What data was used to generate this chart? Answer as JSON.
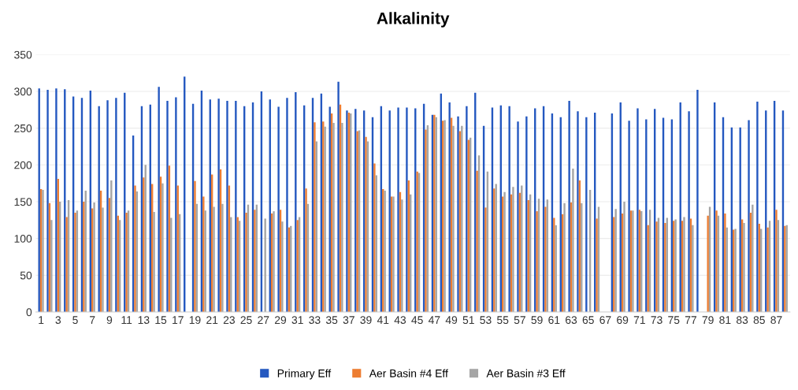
{
  "chart_data": {
    "type": "bar",
    "title": "Alkalinity",
    "categories": [
      "1",
      null,
      "3",
      null,
      "5",
      null,
      "7",
      null,
      "9",
      null,
      "11",
      null,
      "13",
      null,
      "15",
      null,
      "17",
      null,
      "19",
      null,
      "21",
      null,
      "23",
      null,
      "25",
      null,
      "27",
      null,
      "29",
      null,
      "31",
      null,
      "33",
      null,
      "35",
      null,
      "37",
      null,
      "39",
      null,
      "41",
      null,
      "43",
      null,
      "45",
      null,
      "47",
      null,
      "49",
      null,
      "51",
      null,
      "53",
      null,
      "55",
      null,
      "57",
      null,
      "59",
      null,
      "61",
      null,
      "63",
      null,
      "65",
      null,
      "67",
      null,
      "69",
      null,
      "71",
      null,
      "73",
      null,
      "75",
      null,
      "77",
      null,
      "79",
      null,
      "81",
      null,
      "83",
      null,
      "85",
      null,
      "87",
      null
    ],
    "series": [
      {
        "name": "Primary Eff",
        "color": "#2458c0",
        "values": [
          304,
          302,
          304,
          303,
          293,
          291,
          301,
          280,
          288,
          291,
          298,
          240,
          280,
          282,
          306,
          287,
          292,
          320,
          283,
          301,
          289,
          290,
          287,
          287,
          280,
          285,
          300,
          289,
          279,
          291,
          299,
          281,
          291,
          297,
          279,
          313,
          274,
          276,
          274,
          265,
          280,
          274,
          278,
          278,
          277,
          283,
          268,
          297,
          285,
          266,
          280,
          298,
          253,
          278,
          281,
          280,
          259,
          266,
          277,
          280,
          270,
          265,
          287,
          273,
          265,
          271,
          null,
          270,
          285,
          260,
          277,
          262,
          276,
          264,
          262,
          285,
          273,
          302,
          null,
          285,
          265,
          251,
          251,
          261,
          286,
          274,
          287,
          274
        ]
      },
      {
        "name": "Aer Basin #4 Eff",
        "color": "#ed7d31",
        "values": [
          167,
          148,
          181,
          129,
          135,
          150,
          141,
          165,
          155,
          131,
          135,
          172,
          183,
          174,
          184,
          199,
          172,
          null,
          178,
          157,
          187,
          194,
          172,
          129,
          135,
          139,
          null,
          134,
          139,
          115,
          125,
          168,
          258,
          259,
          270,
          282,
          271,
          246,
          238,
          202,
          167,
          157,
          163,
          179,
          191,
          248,
          268,
          260,
          264,
          246,
          234,
          192,
          142,
          168,
          157,
          160,
          162,
          152,
          137,
          143,
          128,
          133,
          149,
          179,
          null,
          127,
          null,
          129,
          134,
          138,
          139,
          118,
          123,
          121,
          124,
          124,
          127,
          null,
          131,
          138,
          134,
          112,
          126,
          135,
          120,
          115,
          139,
          117
        ]
      },
      {
        "name": "Aer Basin #3 Eff",
        "color": "#a5a5a5",
        "values": [
          166,
          125,
          150,
          152,
          138,
          165,
          149,
          142,
          179,
          125,
          138,
          164,
          200,
          136,
          175,
          128,
          133,
          null,
          147,
          138,
          143,
          147,
          129,
          124,
          146,
          146,
          127,
          137,
          123,
          117,
          129,
          147,
          232,
          252,
          257,
          257,
          270,
          247,
          232,
          186,
          165,
          157,
          153,
          160,
          189,
          254,
          265,
          261,
          253,
          253,
          237,
          213,
          191,
          174,
          163,
          170,
          172,
          160,
          154,
          153,
          118,
          148,
          195,
          148,
          166,
          143,
          null,
          140,
          150,
          138,
          137,
          139,
          128,
          128,
          126,
          129,
          118,
          null,
          143,
          131,
          115,
          113,
          121,
          146,
          113,
          124,
          125,
          118
        ]
      }
    ],
    "ylim": [
      0,
      350
    ],
    "yticks": [
      0,
      50,
      100,
      150,
      200,
      250,
      300,
      350
    ],
    "grid": "y",
    "legend": "bottom"
  }
}
